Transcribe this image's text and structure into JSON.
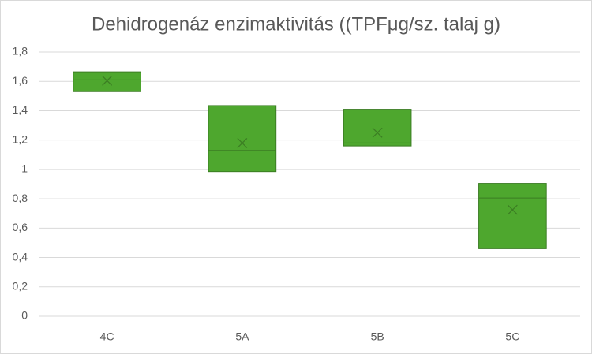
{
  "chart_data": {
    "type": "box",
    "title": "Dehidrogenáz enzimaktivitás ((TPFμg/sz. talaj g)",
    "categories": [
      "4C",
      "5A",
      "5B",
      "5C"
    ],
    "boxes": [
      {
        "q1": 1.53,
        "median": 1.61,
        "q3": 1.665,
        "mean": 1.605
      },
      {
        "q1": 0.985,
        "median": 1.13,
        "q3": 1.435,
        "mean": 1.18
      },
      {
        "q1": 1.16,
        "median": 1.18,
        "q3": 1.41,
        "mean": 1.25
      },
      {
        "q1": 0.46,
        "median": 0.805,
        "q3": 0.905,
        "mean": 0.725
      }
    ],
    "color": "#4ea72e",
    "edge_color": "#3b7d23",
    "ylim": [
      0,
      1.8
    ],
    "yticks": [
      0,
      {
        "value": 0.2,
        "label": "0,2"
      },
      {
        "value": 0.4,
        "label": "0,4"
      },
      {
        "value": 0.6,
        "label": "0,6"
      },
      {
        "value": 0.8,
        "label": "0,8"
      },
      1,
      {
        "value": 1.2,
        "label": "1,2"
      },
      {
        "value": 1.4,
        "label": "1,4"
      },
      {
        "value": 1.6,
        "label": "1,6"
      },
      {
        "value": 1.8,
        "label": "1,8"
      }
    ],
    "grid": true
  }
}
